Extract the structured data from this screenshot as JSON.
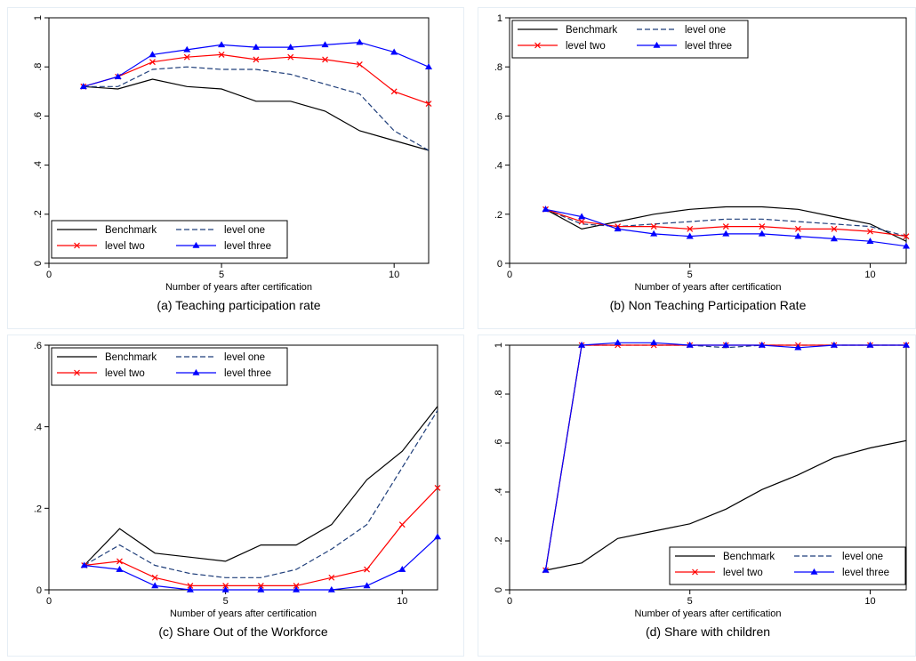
{
  "style": {
    "series_colors": {
      "Benchmark": "#000000",
      "level one": "#1f3e7a",
      "level two": "#ff0000",
      "level three": "#0000ff"
    }
  },
  "chart_data": [
    {
      "type": "line",
      "title": "(a) Teaching participation rate",
      "xlabel": "Number of years after certification",
      "ylabel": "",
      "xlim": [
        0,
        11
      ],
      "ylim": [
        0,
        1
      ],
      "x_ticks": [
        "0",
        "5",
        "10"
      ],
      "y_ticks": [
        "0",
        ".2",
        ".4",
        ".6",
        ".8",
        "1"
      ],
      "y_ticks_rotated": true,
      "legend_position": "bottom",
      "legend_labels": [
        "Benchmark",
        "level one",
        "level two",
        "level three"
      ],
      "x": [
        1,
        2,
        3,
        4,
        5,
        6,
        7,
        8,
        9,
        10,
        11
      ],
      "series": [
        {
          "name": "Benchmark",
          "values": [
            0.72,
            0.71,
            0.75,
            0.72,
            0.71,
            0.66,
            0.66,
            0.62,
            0.54,
            0.5,
            0.46
          ]
        },
        {
          "name": "level one",
          "values": [
            0.72,
            0.72,
            0.79,
            0.8,
            0.79,
            0.79,
            0.77,
            0.73,
            0.69,
            0.54,
            0.46
          ]
        },
        {
          "name": "level two",
          "values": [
            0.72,
            0.76,
            0.82,
            0.84,
            0.85,
            0.83,
            0.84,
            0.83,
            0.81,
            0.7,
            0.65
          ]
        },
        {
          "name": "level three",
          "values": [
            0.72,
            0.76,
            0.85,
            0.87,
            0.89,
            0.88,
            0.88,
            0.89,
            0.9,
            0.86,
            0.8
          ]
        }
      ]
    },
    {
      "type": "line",
      "title": "(b) Non Teaching Participation Rate",
      "xlabel": "Number of years after certification",
      "ylabel": "",
      "xlim": [
        0,
        11
      ],
      "ylim": [
        0,
        1
      ],
      "x_ticks": [
        "0",
        "5",
        "10"
      ],
      "y_ticks": [
        "0",
        ".2",
        ".4",
        ".6",
        ".8",
        "1"
      ],
      "y_ticks_rotated": false,
      "legend_position": "top",
      "legend_labels": [
        "Benchmark",
        "level one",
        "level two",
        "level three"
      ],
      "x": [
        1,
        2,
        3,
        4,
        5,
        6,
        7,
        8,
        9,
        10,
        11
      ],
      "series": [
        {
          "name": "Benchmark",
          "values": [
            0.22,
            0.14,
            0.17,
            0.2,
            0.22,
            0.23,
            0.23,
            0.22,
            0.19,
            0.16,
            0.09
          ]
        },
        {
          "name": "level one",
          "values": [
            0.22,
            0.16,
            0.15,
            0.16,
            0.17,
            0.18,
            0.18,
            0.17,
            0.16,
            0.15,
            0.11
          ]
        },
        {
          "name": "level two",
          "values": [
            0.22,
            0.17,
            0.15,
            0.15,
            0.14,
            0.15,
            0.15,
            0.14,
            0.14,
            0.13,
            0.11
          ]
        },
        {
          "name": "level three",
          "values": [
            0.22,
            0.19,
            0.14,
            0.12,
            0.11,
            0.12,
            0.12,
            0.11,
            0.1,
            0.09,
            0.07
          ]
        }
      ]
    },
    {
      "type": "line",
      "title": "(c) Share Out of the Workforce",
      "xlabel": "Number of years after certification",
      "ylabel": "",
      "xlim": [
        0,
        11
      ],
      "ylim": [
        0,
        0.6
      ],
      "x_ticks": [
        "0",
        "5",
        "10"
      ],
      "y_ticks": [
        "0",
        ".2",
        ".4",
        ".6"
      ],
      "y_ticks_rotated": false,
      "legend_position": "top",
      "legend_labels": [
        "Benchmark",
        "level one",
        "level two",
        "level three"
      ],
      "x": [
        1,
        2,
        3,
        4,
        5,
        6,
        7,
        8,
        9,
        10,
        11
      ],
      "series": [
        {
          "name": "Benchmark",
          "values": [
            0.06,
            0.15,
            0.09,
            0.08,
            0.07,
            0.11,
            0.11,
            0.16,
            0.27,
            0.34,
            0.45
          ]
        },
        {
          "name": "level one",
          "values": [
            0.06,
            0.11,
            0.06,
            0.04,
            0.03,
            0.03,
            0.05,
            0.1,
            0.16,
            0.3,
            0.44
          ]
        },
        {
          "name": "level two",
          "values": [
            0.06,
            0.07,
            0.03,
            0.01,
            0.01,
            0.01,
            0.01,
            0.03,
            0.05,
            0.16,
            0.25
          ]
        },
        {
          "name": "level three",
          "values": [
            0.06,
            0.05,
            0.01,
            0.0,
            0.0,
            0.0,
            0.0,
            0.0,
            0.01,
            0.05,
            0.13
          ]
        }
      ]
    },
    {
      "type": "line",
      "title": "(d) Share with children",
      "xlabel": "Number of years after certification",
      "ylabel": "",
      "xlim": [
        0,
        11
      ],
      "ylim": [
        0,
        1
      ],
      "x_ticks": [
        "0",
        "5",
        "10"
      ],
      "y_ticks": [
        "0",
        ".2",
        ".4",
        ".6",
        ".8",
        "1"
      ],
      "y_ticks_rotated": true,
      "legend_position": "bottom",
      "legend_labels": [
        "Benchmark",
        "level one",
        "level two",
        "level three"
      ],
      "x": [
        1,
        2,
        3,
        4,
        5,
        6,
        7,
        8,
        9,
        10,
        11
      ],
      "series": [
        {
          "name": "Benchmark",
          "values": [
            0.08,
            0.11,
            0.21,
            0.24,
            0.27,
            0.33,
            0.41,
            0.47,
            0.54,
            0.58,
            0.61
          ]
        },
        {
          "name": "level one",
          "values": [
            0.08,
            1.0,
            1.0,
            1.0,
            1.0,
            0.99,
            1.0,
            1.0,
            1.0,
            1.0,
            1.0
          ]
        },
        {
          "name": "level two",
          "values": [
            0.08,
            1.0,
            1.0,
            1.0,
            1.0,
            1.0,
            1.0,
            1.0,
            1.0,
            1.0,
            1.0
          ]
        },
        {
          "name": "level three",
          "values": [
            0.08,
            1.0,
            1.01,
            1.01,
            1.0,
            1.0,
            1.0,
            0.99,
            1.0,
            1.0,
            1.0
          ]
        }
      ]
    }
  ]
}
